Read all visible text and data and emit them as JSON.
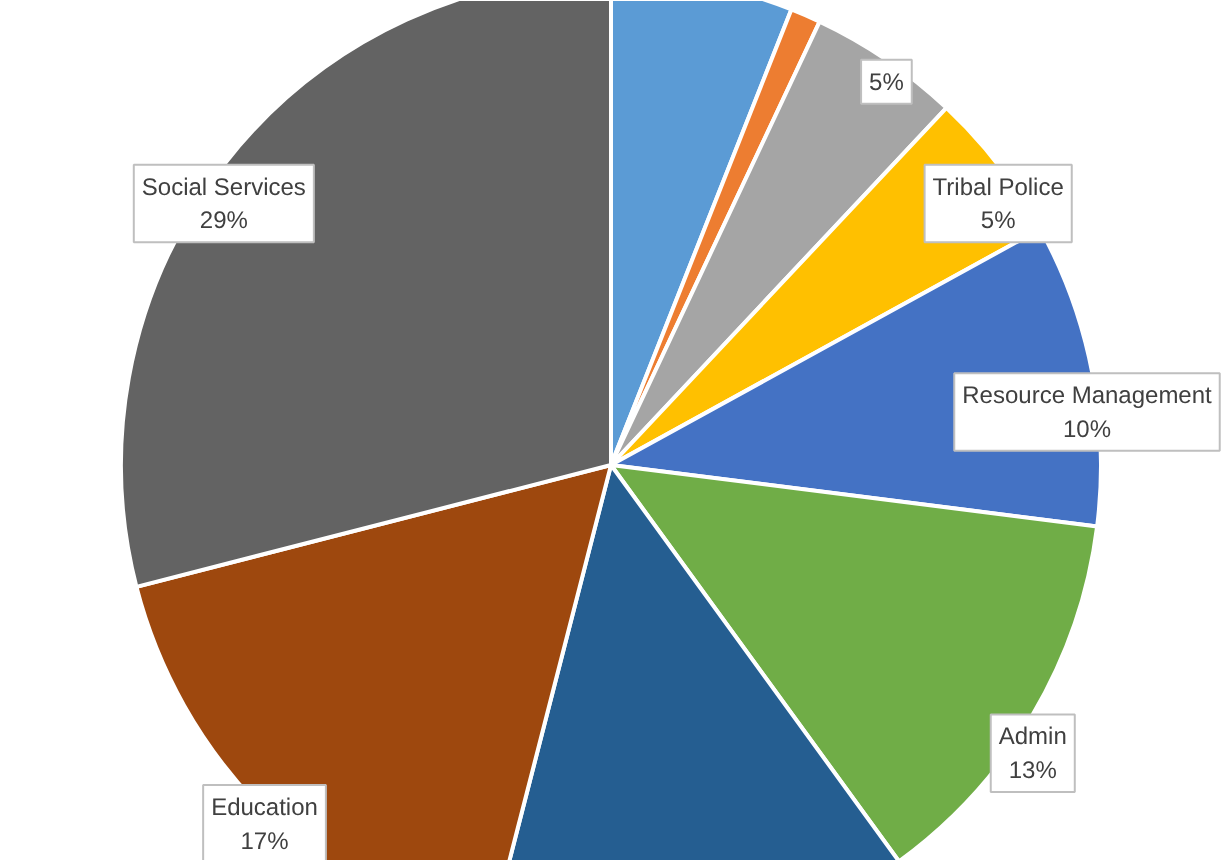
{
  "chart_data": {
    "type": "pie",
    "categories": [
      null,
      null,
      null,
      "Tribal Police",
      "Resource Management",
      "Admin",
      null,
      "Education",
      "Social Services"
    ],
    "values": [
      6,
      1,
      5,
      5,
      10,
      13,
      14,
      17,
      29
    ],
    "colors": [
      "#5b9bd5",
      "#ed7d31",
      "#a5a5a5",
      "#ffc000",
      "#4472c4",
      "#70ad47",
      "#255e91",
      "#9e480e",
      "#636363"
    ],
    "value_labels": [
      null,
      null,
      "5%",
      "5%",
      "10%",
      "13%",
      null,
      "17%",
      "29%"
    ]
  }
}
